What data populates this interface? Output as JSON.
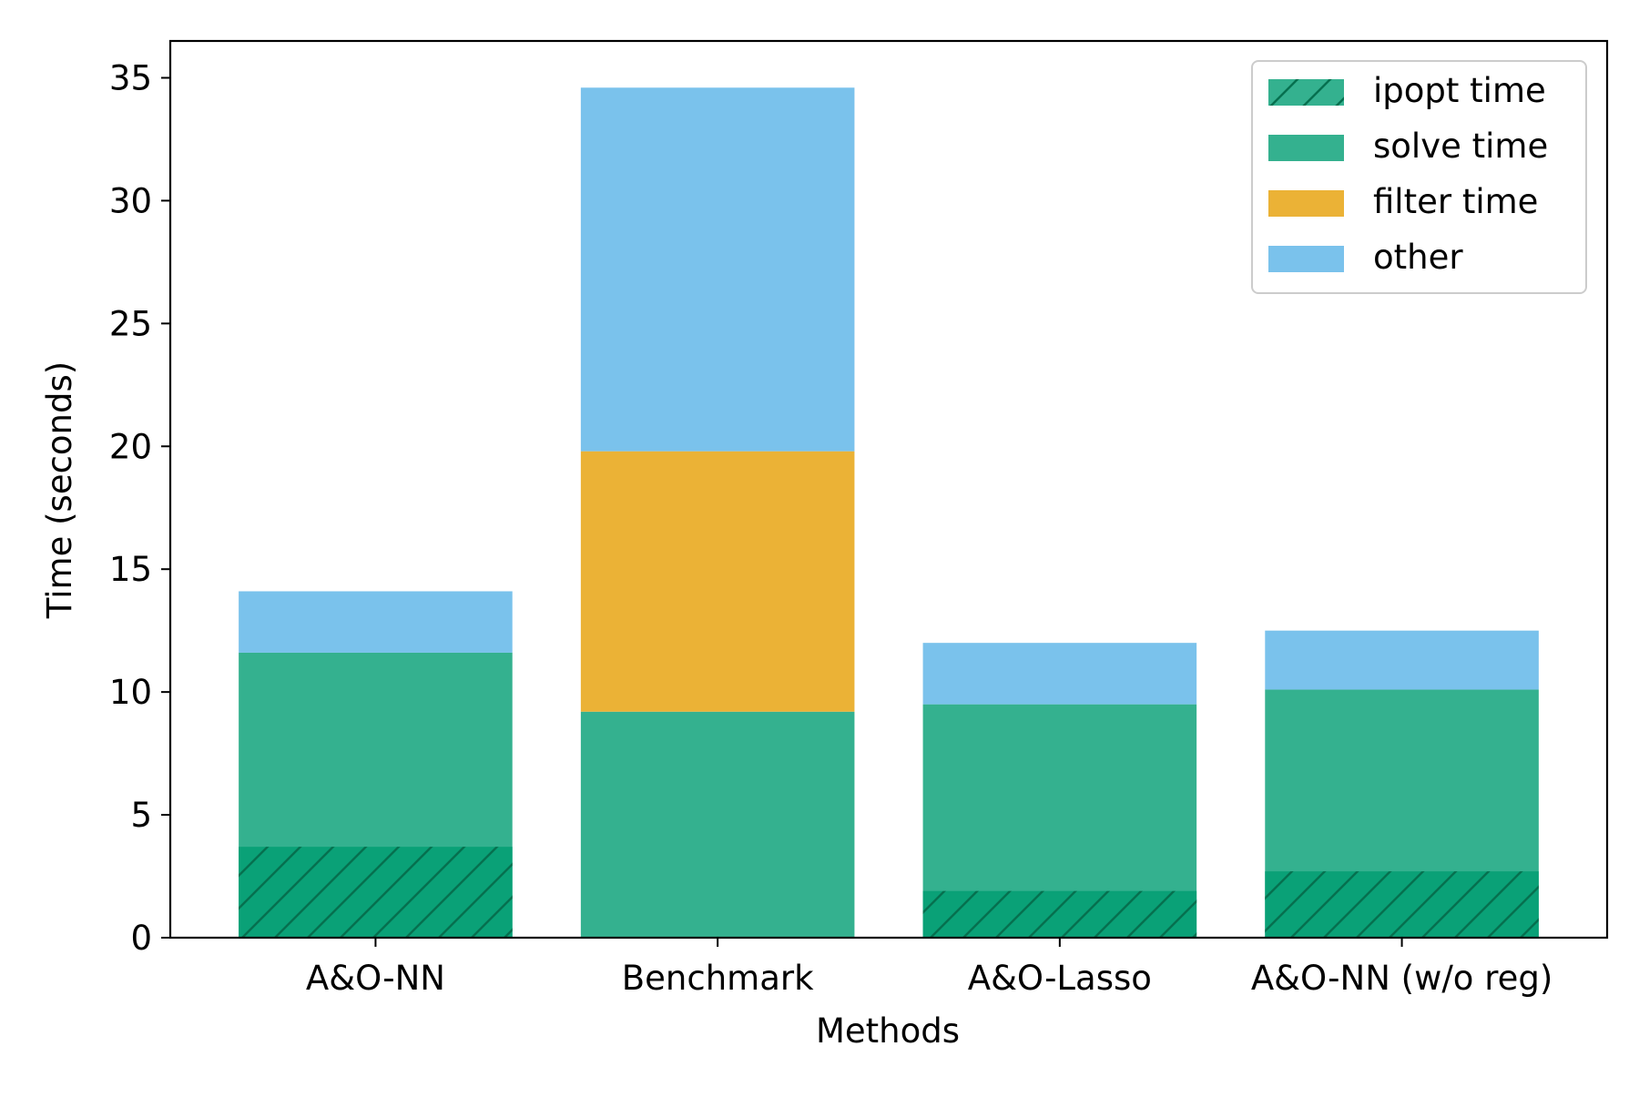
{
  "chart_data": {
    "type": "bar",
    "stacked": true,
    "title": "",
    "xlabel": "Methods",
    "ylabel": "Time (seconds)",
    "categories": [
      "A&O-NN",
      "Benchmark",
      "A&O-Lasso",
      "A&O-NN (w/o reg)"
    ],
    "ylim": [
      0,
      36.5
    ],
    "yticks": [
      "0",
      "5",
      "10",
      "15",
      "20",
      "25",
      "30",
      "35"
    ],
    "grid": false,
    "legend_position": "top-right",
    "series": [
      {
        "name": "solve time",
        "color": "#34b18f",
        "values": [
          11.6,
          9.2,
          9.5,
          10.1
        ]
      },
      {
        "name": "filter time",
        "color": "#ebb236",
        "values": [
          0,
          10.6,
          0,
          0
        ]
      },
      {
        "name": "other",
        "color": "#7ac2ec",
        "values": [
          2.5,
          14.8,
          2.5,
          2.4
        ]
      }
    ],
    "overlay": {
      "name": "ipopt time",
      "color": "#0aa177",
      "hatch": "/",
      "values": [
        3.7,
        0,
        1.9,
        2.7
      ]
    },
    "legend": [
      "ipopt time",
      "solve time",
      "filter time",
      "other"
    ]
  }
}
